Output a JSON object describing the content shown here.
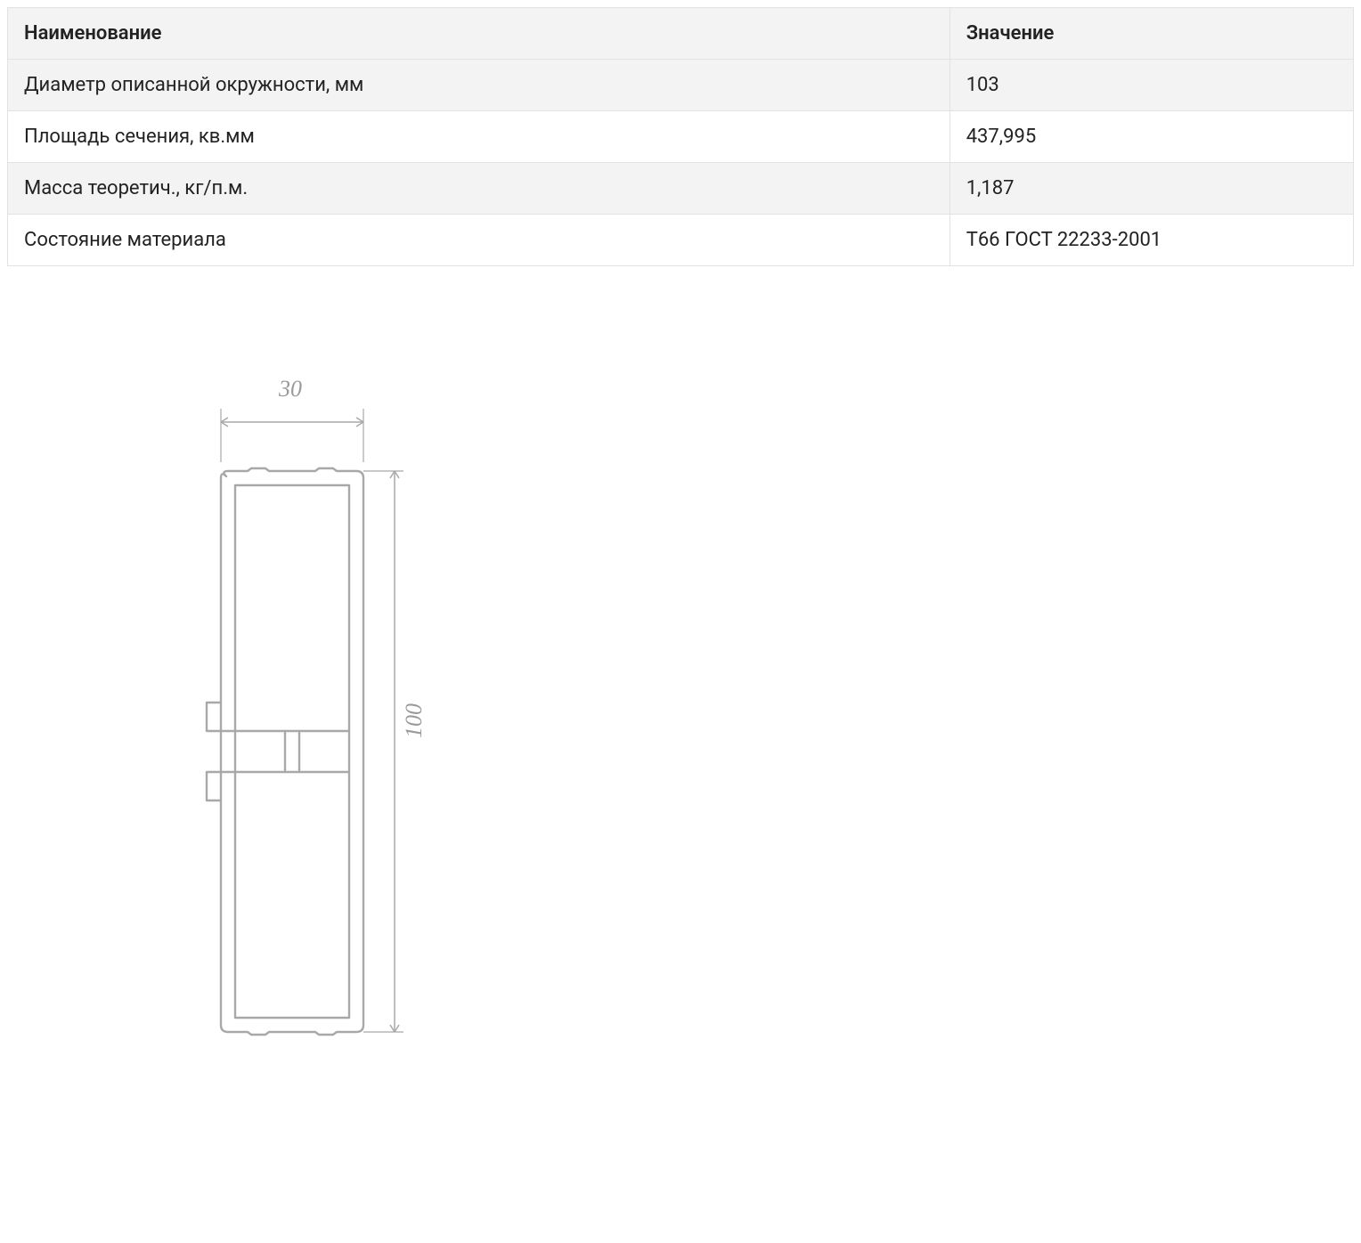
{
  "table": {
    "header": {
      "name": "Наименование",
      "value": "Значение"
    },
    "rows": [
      {
        "label": "Диаметр описанной окружности, мм",
        "value": "103",
        "alt": true
      },
      {
        "label": "Площадь сечения, кв.мм",
        "value": "437,995",
        "alt": false
      },
      {
        "label": "Масса теоретич., кг/п.м.",
        "value": "1,187",
        "alt": true
      },
      {
        "label": "Состояние материала",
        "value": "Т66 ГОСТ 22233-2001",
        "alt": false
      }
    ]
  },
  "drawing": {
    "width_label": "30",
    "height_label": "100",
    "colors": {
      "stroke": "#a8a8a8",
      "text": "#9a9a9a",
      "background": "#ffffff"
    }
  }
}
